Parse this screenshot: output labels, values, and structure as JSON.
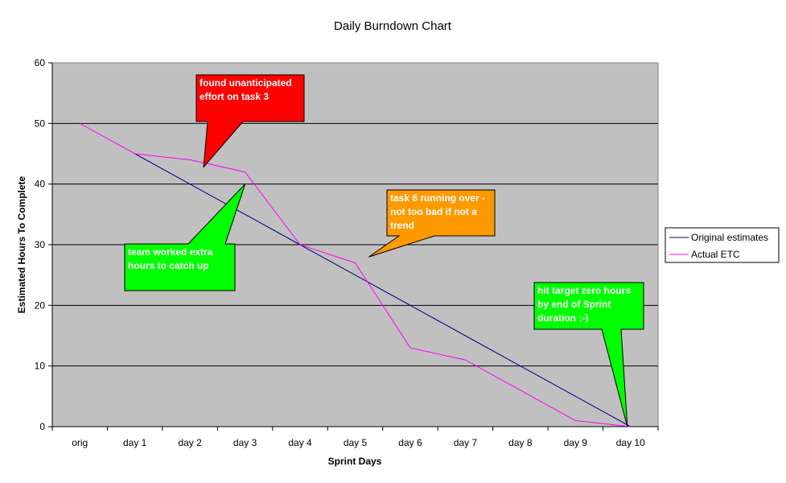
{
  "chart_data": {
    "type": "line",
    "title": "Daily Burndown Chart",
    "xlabel": "Sprint Days",
    "ylabel": "Estimated Hours To Complete",
    "categories": [
      "orig",
      "day 1",
      "day 2",
      "day 3",
      "day 4",
      "day 5",
      "day 6",
      "day 7",
      "day 8",
      "day 9",
      "day 10"
    ],
    "ylim": [
      0,
      60
    ],
    "yticks": [
      0,
      10,
      20,
      30,
      40,
      50,
      60
    ],
    "grid": true,
    "plot_background": "#c0c0c0",
    "legend_position": "right",
    "series": [
      {
        "name": "Original estimates",
        "color": "#000080",
        "values": [
          null,
          45,
          40,
          35,
          30,
          25,
          20,
          15,
          10,
          5,
          0
        ]
      },
      {
        "name": "Actual ETC",
        "color": "#ff00ff",
        "values": [
          50,
          45,
          44,
          42,
          30,
          27,
          13,
          11,
          6,
          1,
          0
        ]
      }
    ],
    "annotations": [
      {
        "id": "callout-unanticipated",
        "lines": [
          "found unanticipated",
          "effort  on task 3"
        ],
        "color": "#ff0000",
        "points_to": {
          "x": "day 2",
          "y": 44
        }
      },
      {
        "id": "callout-extra-hours",
        "lines": [
          "team worked extra",
          "hours to catch up"
        ],
        "color": "#00ff00",
        "points_to": {
          "x": "day 3",
          "y": 40
        }
      },
      {
        "id": "callout-task6",
        "lines": [
          "task 6 running over -",
          "not too bad if not a",
          "trend"
        ],
        "color": "#ff9900",
        "points_to": {
          "x": "day 5",
          "y": 28
        }
      },
      {
        "id": "callout-zero-hours",
        "lines": [
          "hit target zero hours",
          "by end of Sprint",
          "duration :-)"
        ],
        "color": "#00ff00",
        "points_to": {
          "x": "day 10",
          "y": 0
        }
      }
    ]
  }
}
